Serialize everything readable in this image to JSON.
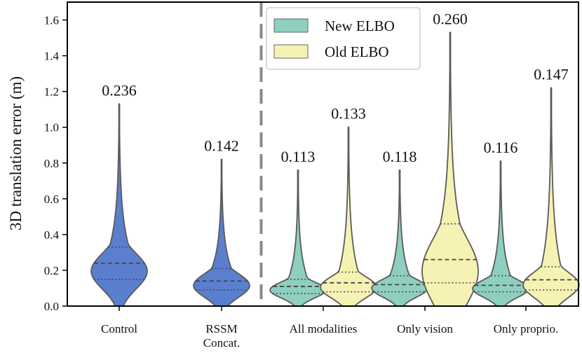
{
  "chart_data": {
    "type": "violin",
    "title": "",
    "xlabel": "",
    "ylabel": "3D translation error (m)",
    "ylim": [
      0.0,
      1.7
    ],
    "yticks": [
      "0.0",
      "0.2",
      "0.4",
      "0.6",
      "0.8",
      "1.0",
      "1.2",
      "1.4",
      "1.6"
    ],
    "grid": false,
    "legend": {
      "position": "top-center",
      "entries": [
        {
          "name": "New ELBO",
          "color": "#8ecfc0"
        },
        {
          "name": "Old ELBO",
          "color": "#f6f2b4"
        }
      ]
    },
    "separator_after_category": 1,
    "categories": [
      "Control",
      "RSSM\nConcat.",
      "All modalities",
      "Only vision",
      "Only proprio."
    ],
    "violins": [
      {
        "category": 0,
        "variant": "baseline",
        "color": "#5b7fcf",
        "max": 1.13,
        "q1": 0.15,
        "median": 0.24,
        "q3": 0.33,
        "label": "0.236"
      },
      {
        "category": 1,
        "variant": "baseline",
        "color": "#5b7fcf",
        "max": 0.82,
        "q1": 0.09,
        "median": 0.14,
        "q3": 0.21,
        "label": "0.142"
      },
      {
        "category": 2,
        "variant": "New ELBO",
        "color": "#8ecfc0",
        "max": 0.76,
        "q1": 0.07,
        "median": 0.11,
        "q3": 0.15,
        "label": "0.113"
      },
      {
        "category": 2,
        "variant": "Old ELBO",
        "color": "#f6f2b4",
        "max": 1.0,
        "q1": 0.08,
        "median": 0.13,
        "q3": 0.19,
        "label": "0.133"
      },
      {
        "category": 3,
        "variant": "New ELBO",
        "color": "#8ecfc0",
        "max": 0.76,
        "q1": 0.08,
        "median": 0.12,
        "q3": 0.17,
        "label": "0.118"
      },
      {
        "category": 3,
        "variant": "Old ELBO",
        "color": "#f6f2b4",
        "max": 1.53,
        "q1": 0.13,
        "median": 0.26,
        "q3": 0.46,
        "label": "0.260"
      },
      {
        "category": 4,
        "variant": "New ELBO",
        "color": "#8ecfc0",
        "max": 0.81,
        "q1": 0.08,
        "median": 0.116,
        "q3": 0.17,
        "label": "0.116"
      },
      {
        "category": 4,
        "variant": "Old ELBO",
        "color": "#f6f2b4",
        "max": 1.22,
        "q1": 0.09,
        "median": 0.147,
        "q3": 0.22,
        "label": "0.147"
      }
    ]
  }
}
